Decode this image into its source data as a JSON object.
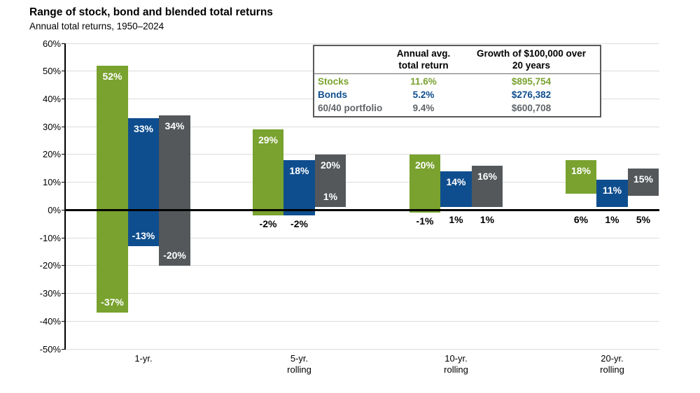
{
  "title": "Range of stock, bond and blended total returns",
  "subtitle": "Annual total returns, 1950–2024",
  "colors": {
    "stocks": "#79a22f",
    "bonds": "#0f4e8e",
    "blended": "#54585b",
    "blended_text": "#5f6468",
    "gridline": "#dcdcdc",
    "axis": "#000000"
  },
  "table": {
    "headers": [
      [
        "Annual avg.",
        "total return"
      ],
      [
        "Growth of $100,000 over",
        "20 years"
      ]
    ],
    "rows": [
      {
        "label": "Stocks",
        "avg_return": "11.6%",
        "growth": "$895,754",
        "color_key": "stocks"
      },
      {
        "label": "Bonds",
        "avg_return": "5.2%",
        "growth": "$276,382",
        "color_key": "bonds"
      },
      {
        "label": "60/40 portfolio",
        "avg_return": "9.4%",
        "growth": "$600,708",
        "color_key": "blended_text"
      }
    ]
  },
  "chart_data": {
    "type": "bar",
    "subtype": "floating-range-columns",
    "title": "Range of stock, bond and blended total returns",
    "subtitle": "Annual total returns, 1950–2024",
    "categories": [
      "1-yr.",
      "5-yr. rolling",
      "10-yr. rolling",
      "20-yr. rolling"
    ],
    "category_label_lines": [
      [
        "1-yr."
      ],
      [
        "5-yr.",
        "rolling"
      ],
      [
        "10-yr.",
        "rolling"
      ],
      [
        "20-yr.",
        "rolling"
      ]
    ],
    "ylim": [
      -50,
      60
    ],
    "ytick_step": 10,
    "ytick_labels": [
      "60%",
      "50%",
      "40%",
      "30%",
      "20%",
      "10%",
      "0%",
      "-10%",
      "-20%",
      "-30%",
      "-40%",
      "-50%"
    ],
    "grid": true,
    "legend_position": "none",
    "series": [
      {
        "name": "Stocks",
        "color_key": "stocks",
        "ranges": [
          [
            -37,
            52
          ],
          [
            -2,
            29
          ],
          [
            -1,
            20
          ],
          [
            6,
            18
          ]
        ],
        "high_labels": [
          "52%",
          "29%",
          "20%",
          "18%"
        ],
        "low_labels": [
          "-37%",
          "-2%",
          "-1%",
          "6%"
        ],
        "low_label_inside": [
          true,
          false,
          false,
          false
        ]
      },
      {
        "name": "Bonds",
        "color_key": "bonds",
        "ranges": [
          [
            -13,
            33
          ],
          [
            -2,
            18
          ],
          [
            1,
            14
          ],
          [
            1,
            11
          ]
        ],
        "high_labels": [
          "33%",
          "18%",
          "14%",
          "11%"
        ],
        "low_labels": [
          "-13%",
          "-2%",
          "1%",
          "1%"
        ],
        "low_label_inside": [
          true,
          false,
          false,
          false
        ]
      },
      {
        "name": "60/40 portfolio",
        "color_key": "blended",
        "ranges": [
          [
            -20,
            34
          ],
          [
            1,
            20
          ],
          [
            1,
            16
          ],
          [
            5,
            15
          ]
        ],
        "high_labels": [
          "34%",
          "20%",
          "16%",
          "15%"
        ],
        "low_labels": [
          "-20%",
          "1%",
          "1%",
          "5%"
        ],
        "low_label_inside": [
          true,
          true,
          false,
          false
        ]
      }
    ]
  }
}
